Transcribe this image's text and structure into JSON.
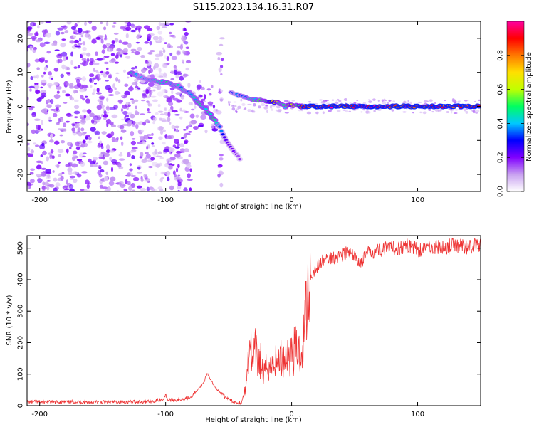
{
  "title": "S115.2023.134.16.31.R07",
  "chart_data": [
    {
      "type": "heatmap",
      "title": "S115.2023.134.16.31.R07",
      "xlabel": "Height of straight line (km)",
      "ylabel": "Frequency (Hz)",
      "xlim": [
        -210,
        150
      ],
      "ylim": [
        -25,
        25
      ],
      "xticks": [
        -200,
        -100,
        0,
        100
      ],
      "xtick_labels": [
        "-200",
        "-100",
        "0",
        "100"
      ],
      "yticks": [
        -20,
        -10,
        0,
        10,
        20
      ],
      "ytick_labels": [
        "-20",
        "-10",
        "0",
        "10",
        "20"
      ],
      "grid": false,
      "colorbar": {
        "label": "Normalized spectral amplitude",
        "range": [
          0.0,
          1.0
        ],
        "ticks": [
          0.0,
          0.2,
          0.4,
          0.6,
          0.8
        ],
        "tick_labels": [
          "0.0",
          "0.2",
          "0.4",
          "0.6",
          "0.8"
        ],
        "colors": [
          "#ffffff",
          "#c8a0f0",
          "#8000ff",
          "#0000ff",
          "#00c8ff",
          "#00ff60",
          "#c0ff00",
          "#ffe000",
          "#ff7800",
          "#ff0000",
          "#ff00a0"
        ]
      },
      "features": {
        "dispersed_track": [
          {
            "x": -128,
            "y": 10,
            "amp": 0.5
          },
          {
            "x": -120,
            "y": 8.5,
            "amp": 0.35
          },
          {
            "x": -110,
            "y": 7.5,
            "amp": 0.4
          },
          {
            "x": -100,
            "y": 7,
            "amp": 0.45
          },
          {
            "x": -90,
            "y": 6,
            "amp": 0.4
          },
          {
            "x": -82,
            "y": 4,
            "amp": 0.4
          },
          {
            "x": -75,
            "y": 1.5,
            "amp": 0.45
          },
          {
            "x": -68,
            "y": -1,
            "amp": 0.45
          },
          {
            "x": -62,
            "y": -3.5,
            "amp": 0.5
          },
          {
            "x": -57,
            "y": -6,
            "amp": 0.35
          },
          {
            "x": -52,
            "y": -10,
            "amp": 0.25
          },
          {
            "x": -46,
            "y": -13,
            "amp": 0.2
          },
          {
            "x": -40,
            "y": -16,
            "amp": 0.15
          }
        ],
        "main_track": [
          {
            "x": -48,
            "y": 4,
            "amp": 0.3
          },
          {
            "x": -40,
            "y": 3,
            "amp": 0.35
          },
          {
            "x": -30,
            "y": 2,
            "amp": 0.45
          },
          {
            "x": -20,
            "y": 1.5,
            "amp": 0.5
          },
          {
            "x": -15,
            "y": 1.5,
            "amp": 0.85
          },
          {
            "x": -10,
            "y": 1,
            "amp": 0.5
          },
          {
            "x": -5,
            "y": 0,
            "amp": 0.45
          },
          {
            "x": 0,
            "y": 0.5,
            "amp": 0.6
          },
          {
            "x": 5,
            "y": 0,
            "amp": 0.5
          },
          {
            "x": 10,
            "y": 0,
            "amp": 0.9
          },
          {
            "x": 150,
            "y": 0,
            "amp": 0.9
          }
        ]
      }
    },
    {
      "type": "line",
      "xlabel": "Height of straight line (km)",
      "ylabel": "SNR (10 * v/v)",
      "xlim": [
        -210,
        150
      ],
      "ylim": [
        0,
        540
      ],
      "xticks": [
        -200,
        -100,
        0,
        100
      ],
      "xtick_labels": [
        "-200",
        "-100",
        "0",
        "100"
      ],
      "yticks": [
        0,
        100,
        200,
        300,
        400,
        500
      ],
      "ytick_labels": [
        "0",
        "100",
        "200",
        "300",
        "400",
        "500"
      ],
      "grid": false,
      "series": [
        {
          "color": "#ee3333",
          "x": [
            -210,
            -190,
            -170,
            -150,
            -130,
            -110,
            -102,
            -100,
            -98,
            -90,
            -80,
            -75,
            -70,
            -67,
            -64,
            -60,
            -55,
            -50,
            -45,
            -40,
            -36,
            -35,
            -33,
            -31,
            -29,
            -27,
            -25,
            -22,
            -20,
            -18,
            -16,
            -14,
            -12,
            -10,
            -8,
            -5,
            -2,
            0,
            3,
            6,
            9,
            11,
            12,
            13,
            15,
            17,
            20,
            25,
            30,
            35,
            40,
            45,
            50,
            55,
            58,
            62,
            70,
            80,
            90,
            95,
            100,
            110,
            120,
            130,
            140,
            150
          ],
          "y": [
            12,
            11,
            12,
            11,
            12,
            14,
            20,
            35,
            18,
            18,
            28,
            48,
            72,
            100,
            80,
            55,
            35,
            20,
            12,
            8,
            60,
            140,
            220,
            110,
            180,
            130,
            150,
            90,
            120,
            140,
            110,
            160,
            125,
            150,
            150,
            160,
            170,
            160,
            180,
            170,
            190,
            300,
            330,
            380,
            410,
            420,
            440,
            460,
            470,
            475,
            480,
            485,
            470,
            455,
            470,
            490,
            495,
            500,
            505,
            510,
            495,
            505,
            500,
            510,
            505,
            510
          ]
        }
      ]
    }
  ]
}
